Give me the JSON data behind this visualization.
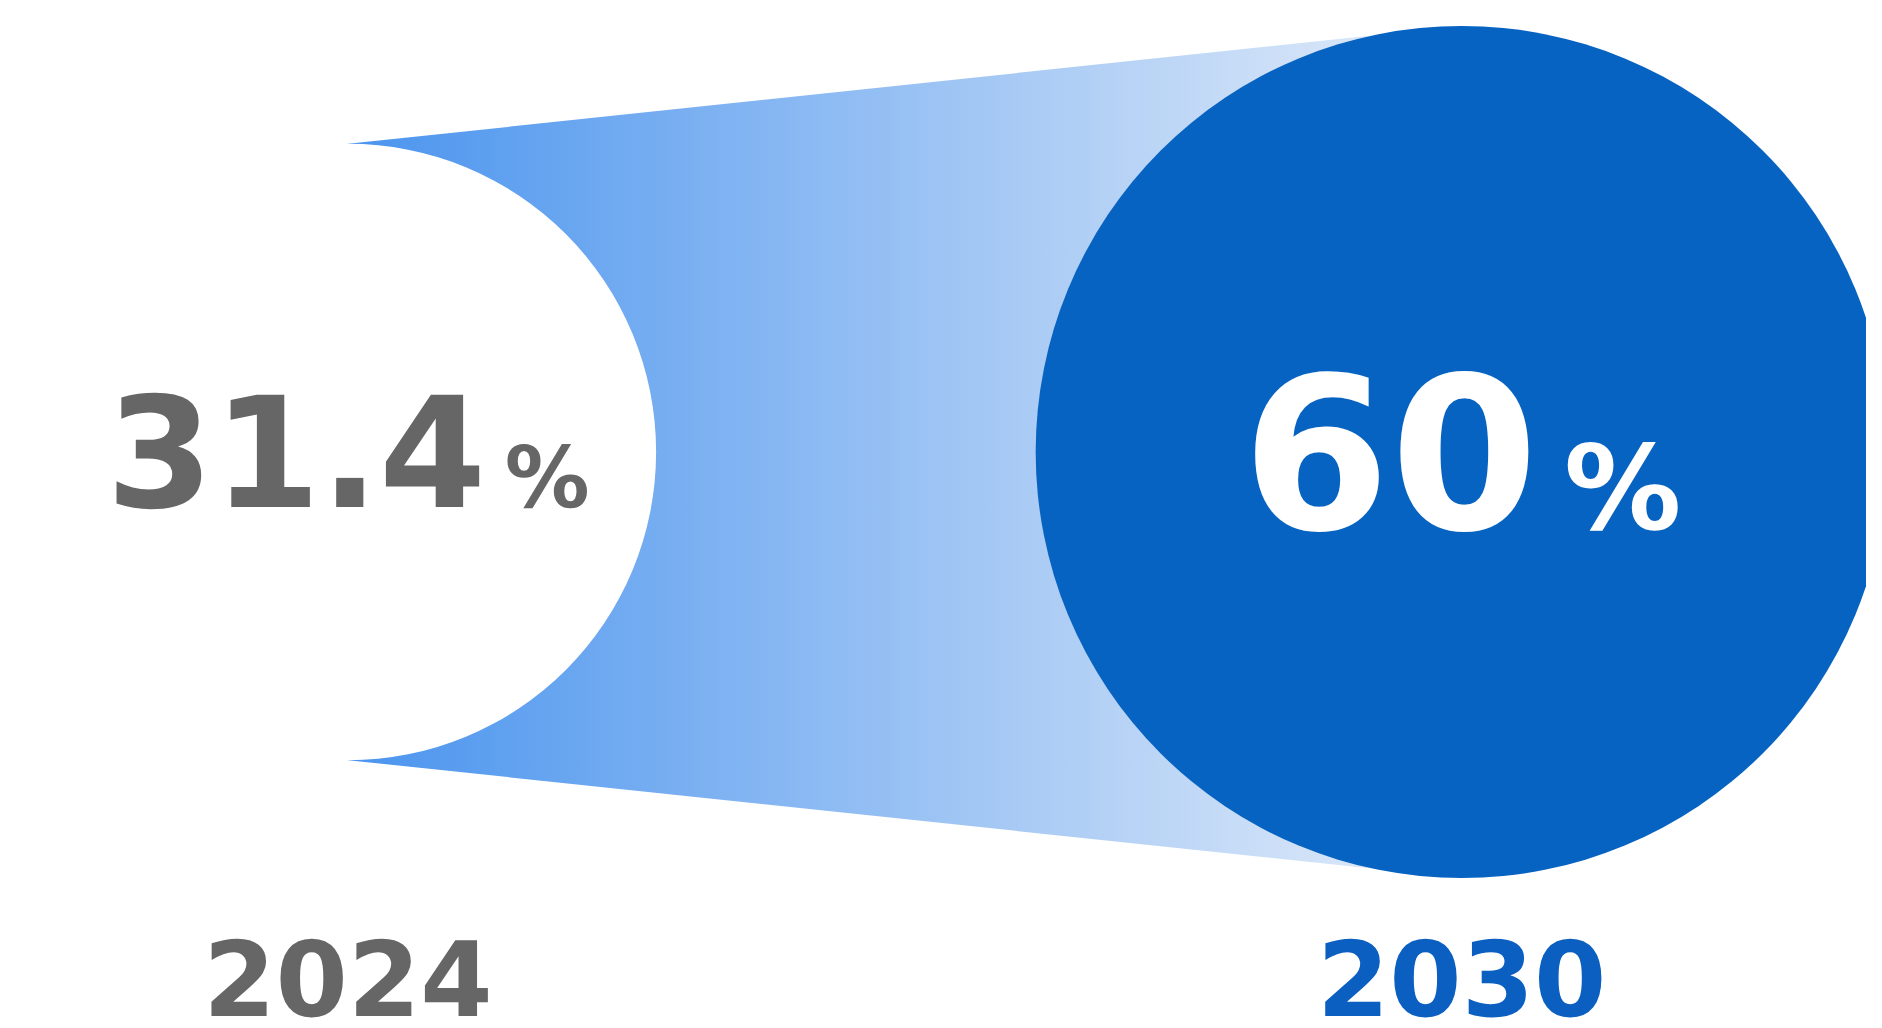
{
  "chart_data": {
    "type": "other",
    "categories": [
      "2024",
      "2030"
    ],
    "values": [
      31.4,
      60
    ],
    "value_labels": [
      "31.4%",
      "60%"
    ],
    "colors": [
      "#ffffff",
      "#0763c1"
    ]
  }
}
